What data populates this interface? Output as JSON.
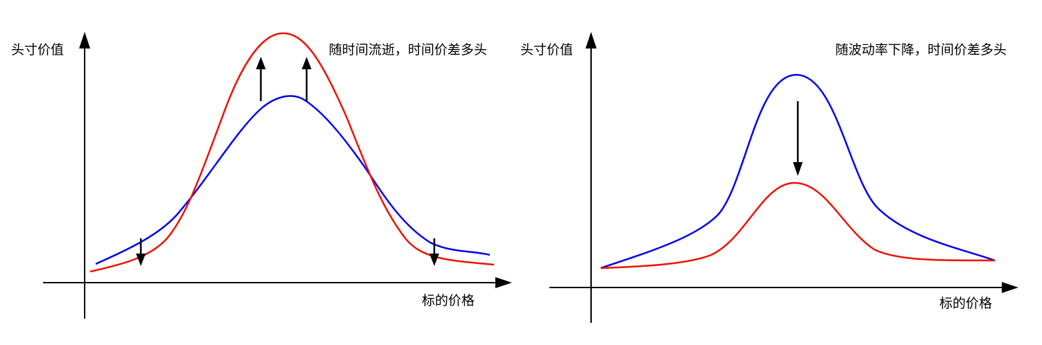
{
  "panels": {
    "left": {
      "y_axis_label": "头寸价值",
      "x_axis_label": "标的价格",
      "note": "随时间流逝，时间价差多头"
    },
    "right": {
      "y_axis_label": "头寸价值",
      "x_axis_label": "标的价格",
      "note": "随波动率下降，时间价差多头"
    }
  },
  "colors": {
    "axis": "#000000",
    "curve_blue": "#0000ee",
    "curve_red": "#ee1100",
    "arrow": "#000000"
  }
}
